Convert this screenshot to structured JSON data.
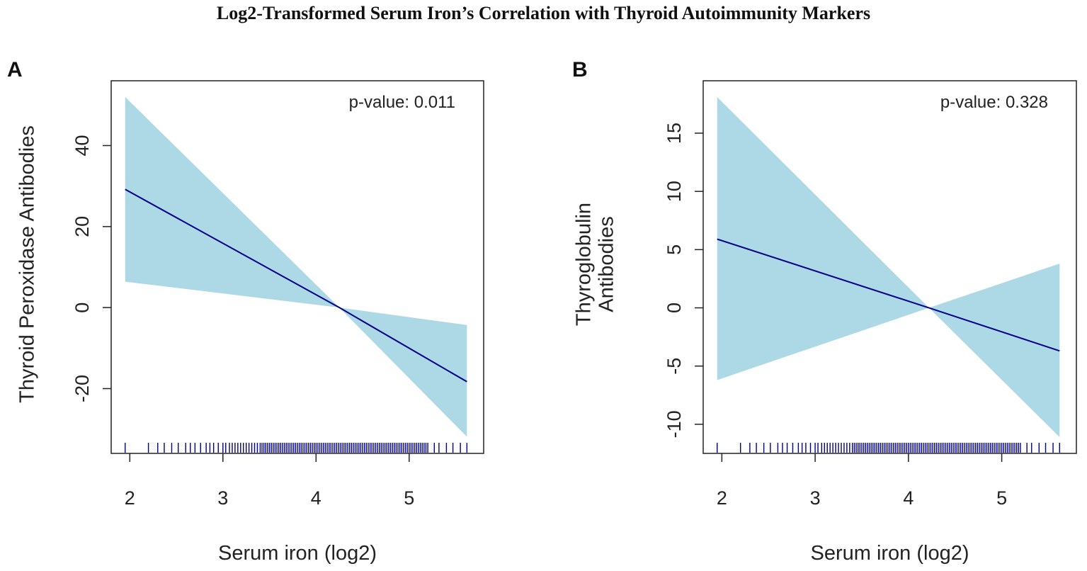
{
  "figure": {
    "title": "Log2-Transformed Serum Iron’s Correlation with Thyroid Autoimmunity Markers"
  },
  "chart_data": [
    {
      "panel": "A",
      "type": "line",
      "title": "",
      "xlabel": "Serum iron (log2)",
      "ylabel_lines": [
        "Thyroid Peroxidase Antibodies"
      ],
      "annotation": "p-value: 0.011",
      "xlim": [
        1.8,
        5.8
      ],
      "ylim": [
        -36,
        56
      ],
      "xticks": [
        2,
        3,
        4,
        5
      ],
      "yticks": [
        -20,
        0,
        20,
        40
      ],
      "x": [
        1.95,
        4.25,
        5.62
      ],
      "fit": [
        29.2,
        0.0,
        -18.3
      ],
      "ci_lower": [
        6.4,
        0.0,
        -31.9
      ],
      "ci_upper": [
        52.0,
        0.0,
        -4.3
      ],
      "band_color": "#add8e6",
      "line_color": "#00008b",
      "rug_color": "#00008b",
      "rug": [
        1.95,
        2.2,
        2.3,
        2.37,
        2.45,
        2.52,
        2.6,
        2.65,
        2.7,
        2.76,
        2.82,
        2.86,
        2.9,
        2.95,
        3.0,
        3.03,
        3.07,
        3.1,
        3.13,
        3.16,
        3.19,
        3.22,
        3.25,
        3.28,
        3.31,
        3.34,
        3.37,
        3.4,
        3.42,
        3.44,
        3.46,
        3.48,
        3.5,
        3.52,
        3.54,
        3.56,
        3.58,
        3.6,
        3.62,
        3.64,
        3.66,
        3.68,
        3.7,
        3.72,
        3.74,
        3.76,
        3.78,
        3.8,
        3.82,
        3.84,
        3.86,
        3.88,
        3.9,
        3.92,
        3.94,
        3.96,
        3.98,
        4.0,
        4.02,
        4.04,
        4.06,
        4.08,
        4.1,
        4.12,
        4.14,
        4.16,
        4.18,
        4.2,
        4.22,
        4.24,
        4.26,
        4.28,
        4.3,
        4.32,
        4.34,
        4.36,
        4.38,
        4.4,
        4.42,
        4.44,
        4.46,
        4.48,
        4.5,
        4.52,
        4.54,
        4.56,
        4.58,
        4.6,
        4.62,
        4.64,
        4.66,
        4.68,
        4.7,
        4.72,
        4.74,
        4.76,
        4.78,
        4.8,
        4.82,
        4.84,
        4.86,
        4.88,
        4.9,
        4.92,
        4.94,
        4.96,
        4.98,
        5.0,
        5.02,
        5.04,
        5.06,
        5.08,
        5.1,
        5.12,
        5.14,
        5.16,
        5.18,
        5.2,
        5.27,
        5.32,
        5.4,
        5.47,
        5.55,
        5.62
      ]
    },
    {
      "panel": "B",
      "type": "line",
      "title": "",
      "xlabel": "Serum iron (log2)",
      "ylabel_lines": [
        "Thyroglobulin",
        "Antibodies"
      ],
      "annotation": "p-value: 0.328",
      "xlim": [
        1.8,
        5.8
      ],
      "ylim": [
        -12.5,
        19.5
      ],
      "xticks": [
        2,
        3,
        4,
        5
      ],
      "yticks": [
        -10,
        -5,
        0,
        5,
        10,
        15
      ],
      "x": [
        1.95,
        4.22,
        5.62
      ],
      "fit": [
        5.9,
        0.0,
        -3.7
      ],
      "ci_lower": [
        -6.2,
        0.0,
        -11.1
      ],
      "ci_upper": [
        18.1,
        0.0,
        3.8
      ],
      "band_color": "#add8e6",
      "line_color": "#00008b",
      "rug_color": "#00008b",
      "rug": [
        1.95,
        2.2,
        2.3,
        2.37,
        2.45,
        2.52,
        2.6,
        2.65,
        2.7,
        2.76,
        2.82,
        2.86,
        2.9,
        2.95,
        3.0,
        3.03,
        3.07,
        3.1,
        3.13,
        3.16,
        3.19,
        3.22,
        3.25,
        3.28,
        3.31,
        3.34,
        3.37,
        3.4,
        3.42,
        3.44,
        3.46,
        3.48,
        3.5,
        3.52,
        3.54,
        3.56,
        3.58,
        3.6,
        3.62,
        3.64,
        3.66,
        3.68,
        3.7,
        3.72,
        3.74,
        3.76,
        3.78,
        3.8,
        3.82,
        3.84,
        3.86,
        3.88,
        3.9,
        3.92,
        3.94,
        3.96,
        3.98,
        4.0,
        4.02,
        4.04,
        4.06,
        4.08,
        4.1,
        4.12,
        4.14,
        4.16,
        4.18,
        4.2,
        4.22,
        4.24,
        4.26,
        4.28,
        4.3,
        4.32,
        4.34,
        4.36,
        4.38,
        4.4,
        4.42,
        4.44,
        4.46,
        4.48,
        4.5,
        4.52,
        4.54,
        4.56,
        4.58,
        4.6,
        4.62,
        4.64,
        4.66,
        4.68,
        4.7,
        4.72,
        4.74,
        4.76,
        4.78,
        4.8,
        4.82,
        4.84,
        4.86,
        4.88,
        4.9,
        4.92,
        4.94,
        4.96,
        4.98,
        5.0,
        5.02,
        5.04,
        5.06,
        5.08,
        5.1,
        5.12,
        5.14,
        5.16,
        5.18,
        5.2,
        5.27,
        5.32,
        5.4,
        5.47,
        5.55,
        5.62
      ]
    }
  ]
}
